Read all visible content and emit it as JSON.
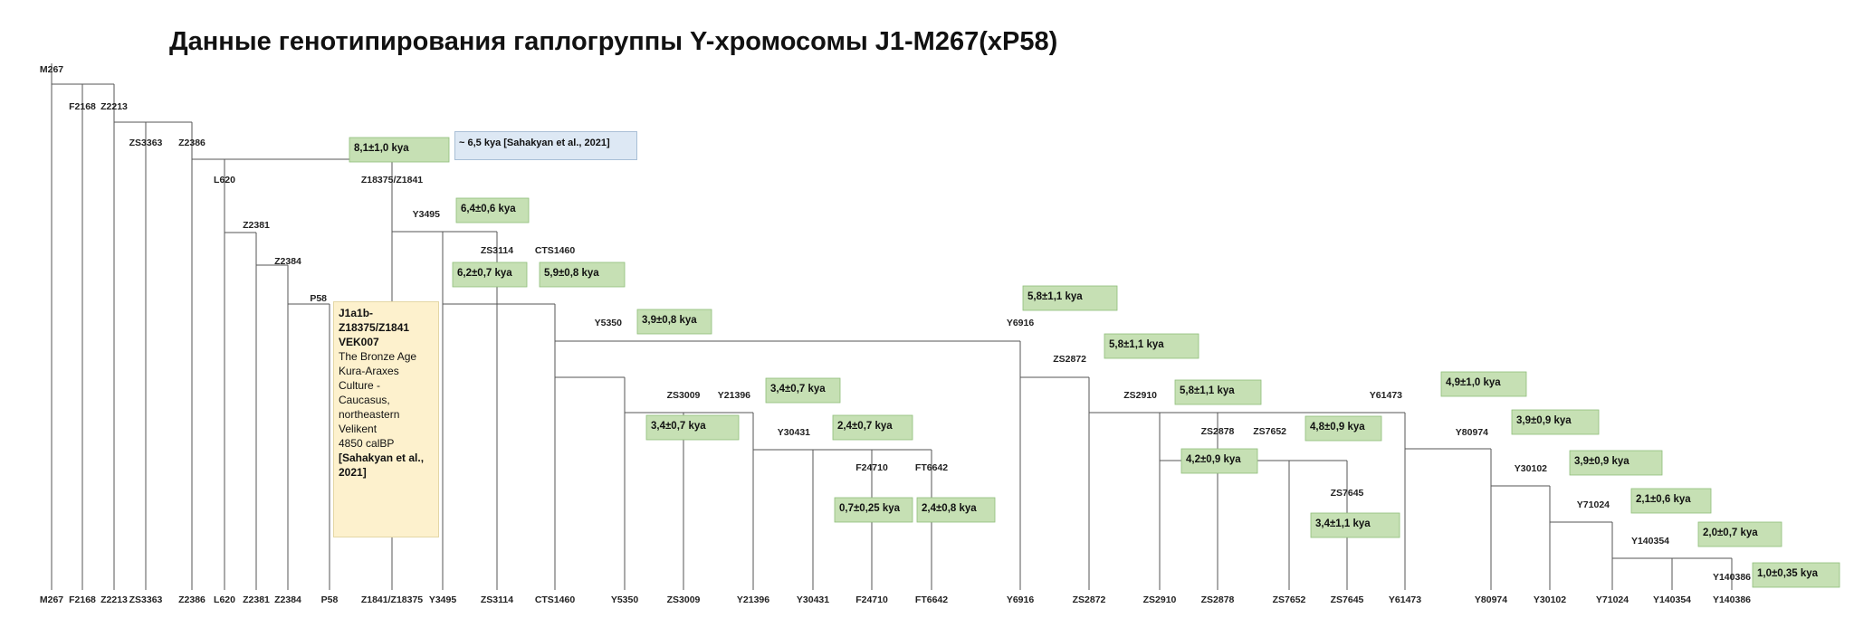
{
  "title": "Данные генотипирования гаплогруппы Y-хромосомы J1-M267(xP58)",
  "note": "~ 6,5 kya [Sahakyan et al., 2021]",
  "sample": {
    "lines_bold_top": [
      "J1a1b-",
      "Z18375/Z1841",
      "VEK007"
    ],
    "lines": [
      "The Bronze Age",
      "Kura-Araxes",
      "Culture  -",
      "Caucasus,",
      "northeastern",
      "Velikent",
      "4850 calBP"
    ],
    "lines_bold_bottom": [
      "[Sahakyan et al.,",
      "2021]"
    ]
  },
  "nodes": [
    {
      "id": "M267",
      "label": "M267"
    },
    {
      "id": "F2168",
      "label": "F2168"
    },
    {
      "id": "Z2213",
      "label": "Z2213"
    },
    {
      "id": "ZS3363",
      "label": "ZS3363"
    },
    {
      "id": "Z2386",
      "label": "Z2386"
    },
    {
      "id": "L620",
      "label": "L620"
    },
    {
      "id": "Z2381",
      "label": "Z2381"
    },
    {
      "id": "Z2384",
      "label": "Z2384"
    },
    {
      "id": "P58",
      "label": "P58"
    },
    {
      "id": "Z18375",
      "label": "Z18375/Z1841"
    },
    {
      "id": "Y3495",
      "label": "Y3495"
    },
    {
      "id": "ZS3114",
      "label": "ZS3114"
    },
    {
      "id": "CTS1460",
      "label": "CTS1460"
    },
    {
      "id": "Y5350",
      "label": "Y5350"
    },
    {
      "id": "ZS3009",
      "label": "ZS3009"
    },
    {
      "id": "Y21396",
      "label": "Y21396"
    },
    {
      "id": "Y30431",
      "label": "Y30431"
    },
    {
      "id": "F24710",
      "label": "F24710"
    },
    {
      "id": "FT6642",
      "label": "FT6642"
    },
    {
      "id": "Y6916",
      "label": "Y6916"
    },
    {
      "id": "ZS2872",
      "label": "ZS2872"
    },
    {
      "id": "ZS2910",
      "label": "ZS2910"
    },
    {
      "id": "ZS2878",
      "label": "ZS2878"
    },
    {
      "id": "ZS7652",
      "label": "ZS7652"
    },
    {
      "id": "ZS7645",
      "label": "ZS7645"
    },
    {
      "id": "Y61473",
      "label": "Y61473"
    },
    {
      "id": "Y80974",
      "label": "Y80974"
    },
    {
      "id": "Y30102",
      "label": "Y30102"
    },
    {
      "id": "Y71024",
      "label": "Y71024"
    },
    {
      "id": "Y140354",
      "label": "Y140354"
    },
    {
      "id": "Y140386",
      "label": "Y140386"
    }
  ],
  "bottom_labels": [
    "M267",
    "F2168",
    "Z2213",
    "ZS3363",
    "Z2386",
    "L620",
    "Z2381",
    "Z2384",
    "P58",
    "Z1841/Z18375",
    "Y3495",
    "ZS3114",
    "CTS1460",
    "Y5350",
    "ZS3009",
    "Y21396",
    "Y30431",
    "F24710",
    "FT6642",
    "Y6916",
    "ZS2872",
    "ZS2910",
    "ZS2878",
    "ZS7652",
    "ZS7645",
    "Y61473",
    "Y80974",
    "Y30102",
    "Y71024",
    "Y140354",
    "Y140386"
  ],
  "ages": [
    {
      "node": "Z18375",
      "text": "8,1±1,0 kya"
    },
    {
      "node": "Y3495",
      "text": "6,4±0,6 kya"
    },
    {
      "node": "ZS3114",
      "text": "6,2±0,7 kya"
    },
    {
      "node": "CTS1460",
      "text": "5,9±0,8 kya"
    },
    {
      "node": "Y6916",
      "text": "5,8±1,1 kya"
    },
    {
      "node": "Y5350",
      "text": "3,9±0,8 kya"
    },
    {
      "node": "ZS2872",
      "text": "5,8±1,1 kya"
    },
    {
      "node": "Y21396",
      "text": "3,4±0,7 kya"
    },
    {
      "node": "ZS2910",
      "text": "5,8±1,1 kya"
    },
    {
      "node": "Y61473",
      "text": "4,9±1,0 kya"
    },
    {
      "node": "ZS3009",
      "text": "3,4±0,7 kya"
    },
    {
      "node": "Y30431",
      "text": "2,4±0,7 kya"
    },
    {
      "node": "ZS7652",
      "text": "4,8±0,9 kya"
    },
    {
      "node": "Y80974",
      "text": "3,9±0,9 kya"
    },
    {
      "node": "ZS2878",
      "text": "4,2±0,9 kya"
    },
    {
      "node": "Y30102",
      "text": "3,9±0,9 kya"
    },
    {
      "node": "Y71024",
      "text": "2,1±0,6 kya"
    },
    {
      "node": "F24710",
      "text": "0,7±0,25 kya"
    },
    {
      "node": "FT6642",
      "text": "2,4±0,8 kya"
    },
    {
      "node": "ZS7645",
      "text": "3,4±1,1 kya"
    },
    {
      "node": "Y140354",
      "text": "2,0±0,7 kya"
    },
    {
      "node": "Y140386",
      "text": "1,0±0,35 kya"
    }
  ],
  "colors": {
    "line": "#555555",
    "age_fill": "#c6e0b4",
    "age_border": "#8fbf7a",
    "note_fill": "#dde8f4",
    "sample_fill": "#fdf1cd"
  }
}
